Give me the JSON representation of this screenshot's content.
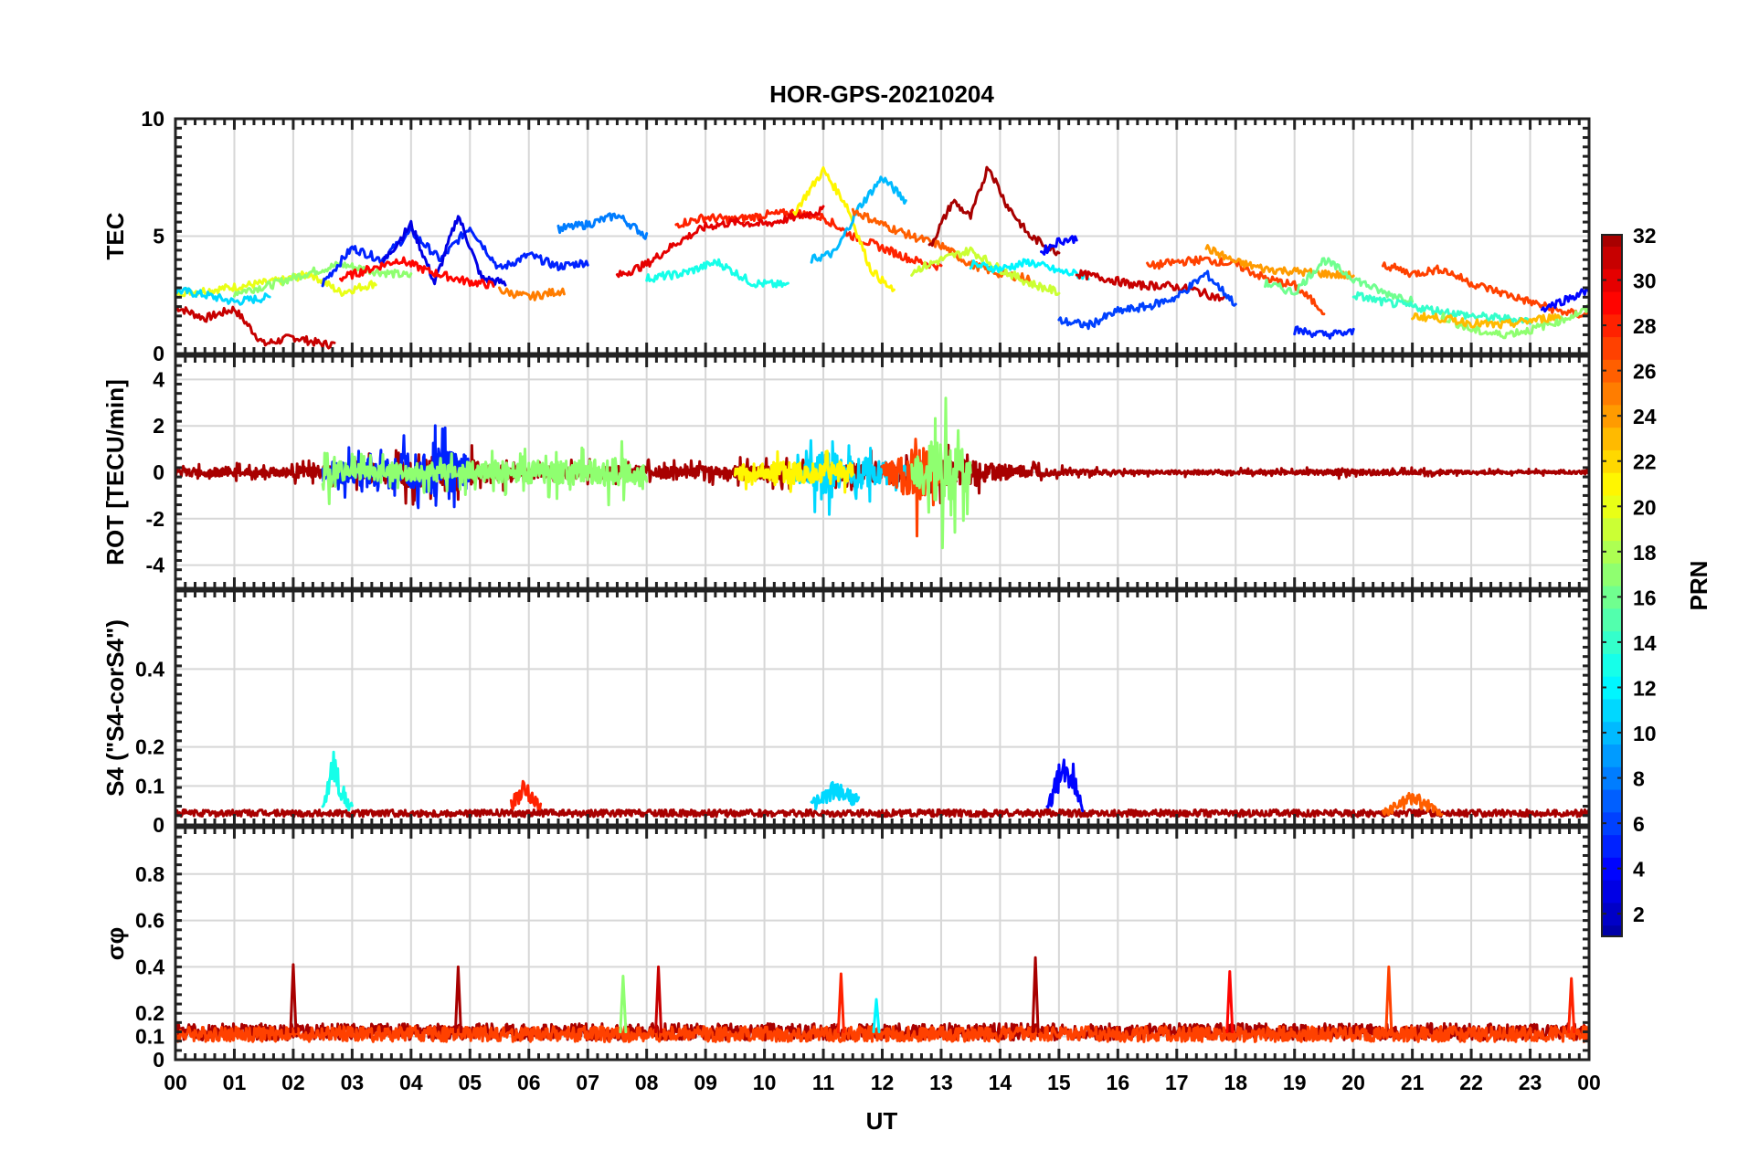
{
  "chart_data": {
    "type": "line",
    "title": "HOR-GPS-20210204",
    "xlabel": "UT",
    "x_tick_labels": [
      "00",
      "01",
      "02",
      "03",
      "04",
      "05",
      "06",
      "07",
      "08",
      "09",
      "10",
      "11",
      "12",
      "13",
      "14",
      "15",
      "16",
      "17",
      "18",
      "19",
      "20",
      "21",
      "22",
      "23",
      "00"
    ],
    "xlim": [
      0,
      24
    ],
    "grid": true,
    "colorbar": {
      "label": "PRN",
      "range": [
        1,
        32
      ],
      "colormap": "jet",
      "tick_labels": [
        "2",
        "4",
        "6",
        "8",
        "10",
        "12",
        "14",
        "16",
        "18",
        "20",
        "22",
        "24",
        "26",
        "28",
        "30",
        "32"
      ]
    },
    "panels": [
      {
        "ylabel": "TEC",
        "ylim": [
          0,
          10
        ],
        "ytick_labels": [
          "0",
          "5",
          "10"
        ],
        "series": [
          {
            "prn": 31,
            "x": [
              0.0,
              0.5,
              1.0,
              1.5,
              2.0,
              2.5,
              2.7
            ],
            "y": [
              2.0,
              1.5,
              1.9,
              0.4,
              0.7,
              0.4,
              0.4
            ]
          },
          {
            "prn": 20,
            "x": [
              0.0,
              0.6,
              1.2,
              1.8,
              2.3,
              2.8,
              3.4
            ],
            "y": [
              2.6,
              2.7,
              2.9,
              3.1,
              3.4,
              2.6,
              3.0
            ]
          },
          {
            "prn": 11,
            "x": [
              0.0,
              0.5,
              1.0,
              1.6
            ],
            "y": [
              2.7,
              2.5,
              2.2,
              2.4
            ]
          },
          {
            "prn": 17,
            "x": [
              1.0,
              1.6,
              2.2,
              2.8,
              3.4,
              4.0
            ],
            "y": [
              2.6,
              2.9,
              3.4,
              3.8,
              3.5,
              3.3
            ]
          },
          {
            "prn": 5,
            "x": [
              2.5,
              3.0,
              3.5,
              4.0,
              4.5,
              5.0,
              5.5,
              6.0,
              6.5,
              7.0
            ],
            "y": [
              3.0,
              4.5,
              4.0,
              5.2,
              4.0,
              5.4,
              3.6,
              4.2,
              3.7,
              3.9
            ]
          },
          {
            "prn": 3,
            "x": [
              3.5,
              4.0,
              4.4,
              4.8,
              5.2,
              5.6
            ],
            "y": [
              3.8,
              5.5,
              3.0,
              5.9,
              3.2,
              3.0
            ]
          },
          {
            "prn": 29,
            "x": [
              2.8,
              3.3,
              3.8,
              4.3,
              4.9,
              5.4
            ],
            "y": [
              3.2,
              3.6,
              4.0,
              3.5,
              3.1,
              2.9
            ]
          },
          {
            "prn": 25,
            "x": [
              5.5,
              6.0,
              6.6
            ],
            "y": [
              2.7,
              2.4,
              2.7
            ]
          },
          {
            "prn": 8,
            "x": [
              6.5,
              7.0,
              7.5,
              8.0
            ],
            "y": [
              5.3,
              5.5,
              5.9,
              5.0
            ]
          },
          {
            "prn": 13,
            "x": [
              8.0,
              8.6,
              9.2,
              9.8,
              10.4
            ],
            "y": [
              3.2,
              3.4,
              3.9,
              3.0,
              2.9
            ]
          },
          {
            "prn": 28,
            "x": [
              8.5,
              9.0,
              9.5,
              10.0,
              10.5,
              11.0,
              11.5,
              12.0,
              12.5,
              13.0
            ],
            "y": [
              5.5,
              5.8,
              5.7,
              5.9,
              6.0,
              5.8,
              5.0,
              4.5,
              4.0,
              3.7
            ]
          },
          {
            "prn": 30,
            "x": [
              7.5,
              8.0,
              8.5,
              9.0,
              9.5,
              10.0,
              10.5,
              11.0
            ],
            "y": [
              3.3,
              3.8,
              4.7,
              5.4,
              5.6,
              5.5,
              5.8,
              6.1
            ]
          },
          {
            "prn": 21,
            "x": [
              10.5,
              11.0,
              11.4,
              11.8,
              12.2
            ],
            "y": [
              6.0,
              7.8,
              6.3,
              3.6,
              2.6
            ]
          },
          {
            "prn": 10,
            "x": [
              10.8,
              11.2,
              11.6,
              12.0,
              12.4
            ],
            "y": [
              4.0,
              4.3,
              6.2,
              7.5,
              6.5
            ]
          },
          {
            "prn": 26,
            "x": [
              11.5,
              12.0,
              12.5,
              13.0,
              13.5,
              14.0,
              14.5
            ],
            "y": [
              6.1,
              5.5,
              5.0,
              4.6,
              3.8,
              3.4,
              3.2
            ]
          },
          {
            "prn": 32,
            "x": [
              12.8,
              13.2,
              13.5,
              13.8,
              14.1,
              14.5,
              15.0
            ],
            "y": [
              4.5,
              6.5,
              5.8,
              8.0,
              6.4,
              5.0,
              4.3
            ]
          },
          {
            "prn": 19,
            "x": [
              12.5,
              13.0,
              13.5,
              14.0,
              14.5,
              15.0
            ],
            "y": [
              3.5,
              4.0,
              4.4,
              3.6,
              3.0,
              2.6
            ]
          },
          {
            "prn": 4,
            "x": [
              14.7,
              15.0,
              15.3
            ],
            "y": [
              4.3,
              4.8,
              4.9
            ]
          },
          {
            "prn": 12,
            "x": [
              13.5,
              14.0,
              14.5,
              15.0,
              15.5
            ],
            "y": [
              3.8,
              3.6,
              3.9,
              3.5,
              3.3
            ]
          },
          {
            "prn": 31,
            "x": [
              15.3,
              15.8,
              16.3,
              16.8,
              17.3,
              17.8
            ],
            "y": [
              3.4,
              3.2,
              2.9,
              2.9,
              2.7,
              2.3
            ]
          },
          {
            "prn": 6,
            "x": [
              15.0,
              15.5,
              16.0,
              16.5,
              17.0,
              17.5,
              18.0
            ],
            "y": [
              1.4,
              1.2,
              1.8,
              2.0,
              2.4,
              3.4,
              2.1
            ]
          },
          {
            "prn": 27,
            "x": [
              16.5,
              17.0,
              17.5,
              18.0,
              18.5,
              19.0,
              19.5
            ],
            "y": [
              3.7,
              3.9,
              4.0,
              3.8,
              3.2,
              2.9,
              1.8
            ]
          },
          {
            "prn": 24,
            "x": [
              17.5,
              18.0,
              18.5,
              19.0,
              19.5,
              20.0
            ],
            "y": [
              4.5,
              3.9,
              3.6,
              3.5,
              3.4,
              3.3
            ]
          },
          {
            "prn": 16,
            "x": [
              18.5,
              19.0,
              19.5,
              20.0,
              20.5,
              21.0
            ],
            "y": [
              3.0,
              2.6,
              4.0,
              3.2,
              2.6,
              2.3
            ]
          },
          {
            "prn": 5,
            "x": [
              19.0,
              19.5,
              20.0
            ],
            "y": [
              1.0,
              0.8,
              0.9
            ]
          },
          {
            "prn": 27,
            "x": [
              20.5,
              21.0,
              21.5,
              22.0,
              22.5,
              23.0,
              23.5,
              24.0
            ],
            "y": [
              3.8,
              3.4,
              3.6,
              3.0,
              2.6,
              2.2,
              1.8,
              1.6
            ]
          },
          {
            "prn": 14,
            "x": [
              20.0,
              20.5,
              21.0,
              21.5,
              22.0,
              22.5,
              23.0
            ],
            "y": [
              2.5,
              2.2,
              2.0,
              1.8,
              1.6,
              1.5,
              1.4
            ]
          },
          {
            "prn": 17,
            "x": [
              21.5,
              22.0,
              22.5,
              23.0,
              23.5,
              24.0
            ],
            "y": [
              1.6,
              1.0,
              0.8,
              1.0,
              1.4,
              1.9
            ]
          },
          {
            "prn": 23,
            "x": [
              21.0,
              21.5,
              22.0,
              22.5,
              23.0,
              23.5
            ],
            "y": [
              1.6,
              1.5,
              1.3,
              1.2,
              1.4,
              1.6
            ]
          },
          {
            "prn": 4,
            "x": [
              23.2,
              23.6,
              24.0
            ],
            "y": [
              1.9,
              2.3,
              2.7
            ]
          }
        ]
      },
      {
        "ylabel": "ROT [TECU/min]",
        "ylim": [
          -5,
          5
        ],
        "ytick_labels": [
          "-4",
          "-2",
          "0",
          "2",
          "4"
        ],
        "series": [
          {
            "prn": 32,
            "x": [
              0.0,
              1.0,
              2.0,
              3.0,
              4.0,
              5.0,
              6.0,
              7.0,
              8.0,
              9.0,
              10.0,
              11.0,
              12.0,
              13.0,
              14.0,
              15.0,
              16.0,
              17.0,
              18.0,
              19.0,
              20.0,
              21.0,
              22.0,
              23.0,
              24.0
            ],
            "amp": [
              0.4,
              0.4,
              0.5,
              0.8,
              1.4,
              1.2,
              0.6,
              0.6,
              0.6,
              0.6,
              0.7,
              0.9,
              1.0,
              1.4,
              0.8,
              0.3,
              0.2,
              0.2,
              0.2,
              0.2,
              0.3,
              0.2,
              0.15,
              0.15,
              0.15
            ]
          },
          {
            "prn": 5,
            "x": [
              2.5,
              3.5,
              4.5,
              5.0
            ],
            "amp": [
              1.0,
              1.4,
              2.4,
              1.5
            ]
          },
          {
            "prn": 17,
            "x": [
              2.5,
              3.0,
              7.0,
              7.5,
              8.0
            ],
            "amp": [
              2.0,
              0.8,
              1.2,
              1.5,
              0.6
            ]
          },
          {
            "prn": 11,
            "x": [
              10.5,
              11.0,
              12.0,
              12.5
            ],
            "amp": [
              1.0,
              2.0,
              1.3,
              0.8
            ]
          },
          {
            "prn": 27,
            "x": [
              12.0,
              12.6,
              13.0
            ],
            "amp": [
              0.8,
              2.8,
              1.0
            ]
          },
          {
            "prn": 17,
            "x": [
              12.5,
              13.0,
              13.5
            ],
            "amp": [
              1.2,
              3.5,
              2.0
            ]
          },
          {
            "prn": 21,
            "x": [
              9.5,
              10.5,
              11.5
            ],
            "amp": [
              0.7,
              1.1,
              0.9
            ]
          }
        ]
      },
      {
        "ylabel": "S4 (\"S4-corS4\")",
        "ylim": [
          0,
          0.6
        ],
        "ytick_labels": [
          "0",
          "0.1",
          "0.2",
          "0.4"
        ],
        "series": [
          {
            "prn": 32,
            "x": [
              0,
              4,
              8,
              12,
              16,
              20,
              24
            ],
            "base": [
              0.03,
              0.03,
              0.03,
              0.03,
              0.03,
              0.03,
              0.03
            ]
          },
          {
            "prn": 13,
            "x": [
              2.5,
              2.7,
              2.8,
              3.0
            ],
            "base": [
              0.04,
              0.16,
              0.09,
              0.04
            ]
          },
          {
            "prn": 4,
            "x": [
              14.8,
              15.0,
              15.2,
              15.4
            ],
            "base": [
              0.04,
              0.12,
              0.14,
              0.05
            ]
          },
          {
            "prn": 28,
            "x": [
              5.7,
              5.9,
              6.2
            ],
            "base": [
              0.05,
              0.09,
              0.05
            ]
          },
          {
            "prn": 11,
            "x": [
              10.8,
              11.2,
              11.6
            ],
            "base": [
              0.05,
              0.09,
              0.06
            ]
          },
          {
            "prn": 26,
            "x": [
              20.5,
              21.0,
              21.5
            ],
            "base": [
              0.03,
              0.07,
              0.03
            ]
          }
        ]
      },
      {
        "ylabel": "σφ",
        "ylim": [
          0,
          1
        ],
        "ytick_labels": [
          "0",
          "0.1",
          "0.2",
          "0.4",
          "0.6",
          "0.8"
        ],
        "series": [
          {
            "prn": 32,
            "x": [
              0,
              24
            ],
            "base": [
              0.12,
              0.12
            ]
          },
          {
            "prn": 27,
            "x": [
              0,
              24
            ],
            "base": [
              0.11,
              0.11
            ]
          }
        ],
        "spikes": [
          {
            "prn": 32,
            "x": 2.0,
            "value": 0.41
          },
          {
            "prn": 32,
            "x": 4.8,
            "value": 0.4
          },
          {
            "prn": 17,
            "x": 7.6,
            "value": 0.36
          },
          {
            "prn": 31,
            "x": 8.2,
            "value": 0.4
          },
          {
            "prn": 28,
            "x": 11.3,
            "value": 0.37
          },
          {
            "prn": 12,
            "x": 11.9,
            "value": 0.26
          },
          {
            "prn": 32,
            "x": 14.6,
            "value": 0.44
          },
          {
            "prn": 29,
            "x": 17.9,
            "value": 0.38
          },
          {
            "prn": 27,
            "x": 20.6,
            "value": 0.4
          },
          {
            "prn": 28,
            "x": 23.7,
            "value": 0.35
          }
        ]
      }
    ]
  }
}
